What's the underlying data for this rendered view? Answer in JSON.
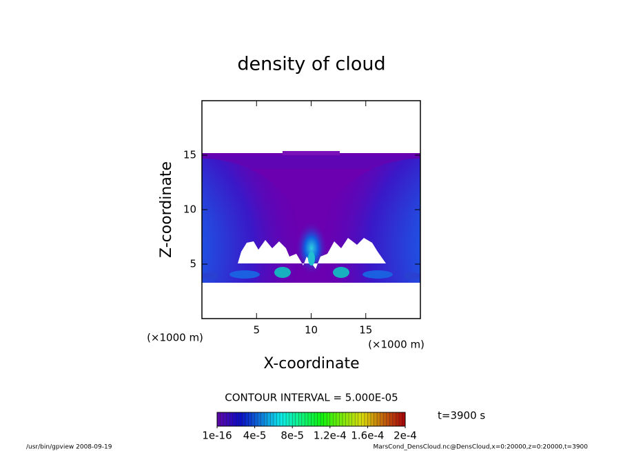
{
  "chart_data": {
    "type": "contour",
    "title": "density of cloud",
    "x_label": "X-coordinate",
    "y_label": "Z-coordinate",
    "x_unit": "(×1000 m)",
    "y_unit": "(×1000 m)",
    "xlim": [
      0,
      20
    ],
    "ylim": [
      0,
      20
    ],
    "xticks": [
      5,
      10,
      15
    ],
    "yticks": [
      5,
      10,
      15
    ],
    "contour_interval": "CONTOUR INTERVAL = 5.000E-05",
    "colorbar": {
      "lim": [
        1e-16,
        0.0002
      ],
      "ticks": [
        {
          "value": 1e-16,
          "label": "1e-16"
        },
        {
          "value": 4e-05,
          "label": "4e-5"
        },
        {
          "value": 8e-05,
          "label": "8e-5"
        },
        {
          "value": 0.00012,
          "label": "1.2e-4"
        },
        {
          "value": 0.00016,
          "label": "1.6e-4"
        },
        {
          "value": 0.0002,
          "label": "2e-4"
        }
      ]
    },
    "time_label": "t=3900 s",
    "footer_left": "/usr/bin/gpview   2008-09-19",
    "footer_right": "MarsCond_DensCloud.nc@DensCloud,x=0:20000,z=0:20000,t=3900"
  }
}
